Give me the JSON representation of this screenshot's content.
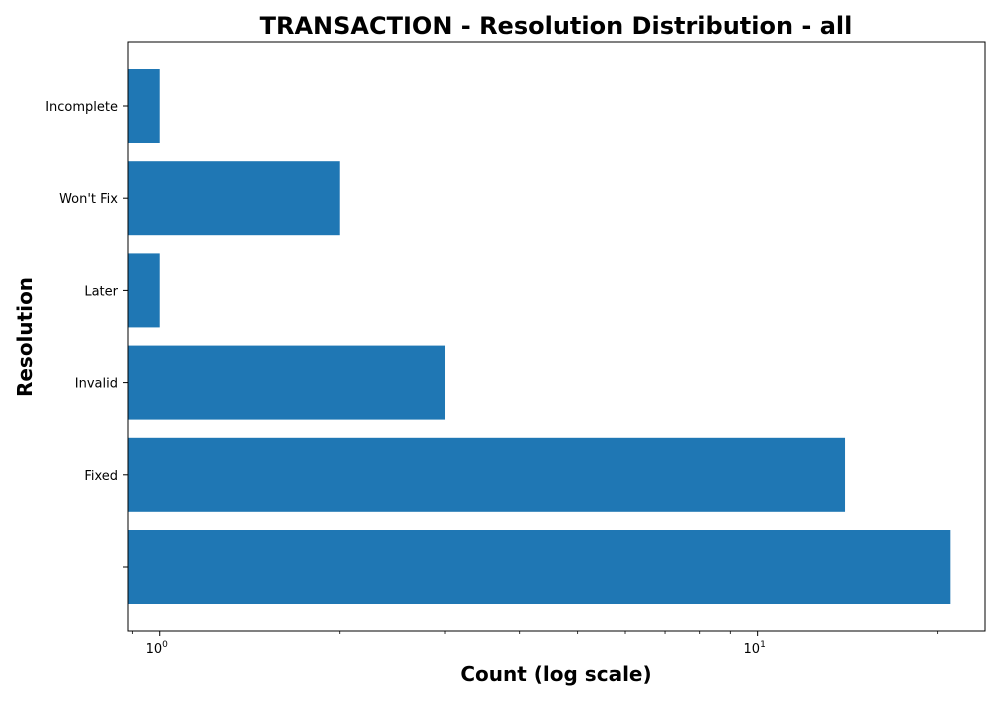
{
  "chart_data": {
    "type": "bar",
    "orientation": "horizontal",
    "title": "TRANSACTION - Resolution Distribution - all",
    "xlabel": "Count (log scale)",
    "ylabel": "Resolution",
    "xscale": "log",
    "xlim": [
      0.885,
      24
    ],
    "xticks": [
      {
        "value": 1,
        "base": "10",
        "exponent": "0"
      },
      {
        "value": 10,
        "base": "10",
        "exponent": "1"
      }
    ],
    "categories": [
      "Incomplete",
      "Won't Fix",
      "Later",
      "Invalid",
      "Fixed",
      ""
    ],
    "values": [
      1,
      2,
      1,
      3,
      14,
      21
    ],
    "bar_color": "#1f77b4",
    "grid": false,
    "legend": null
  }
}
